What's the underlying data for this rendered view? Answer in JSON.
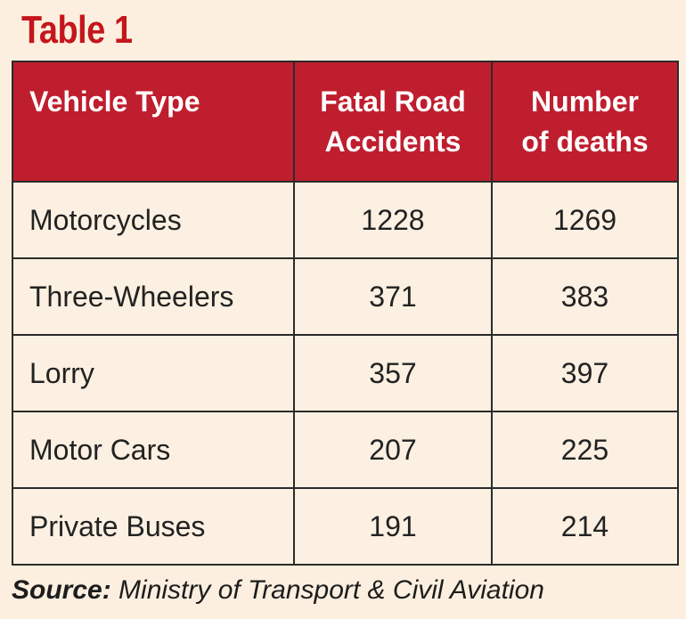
{
  "title": "Table 1",
  "table": {
    "headers": [
      "Vehicle Type",
      "Fatal Road Accidents",
      "Number of deaths"
    ],
    "header_lines": [
      [
        "Vehicle Type"
      ],
      [
        "Fatal Road",
        "Accidents"
      ],
      [
        "Number",
        "of deaths"
      ]
    ],
    "rows": [
      {
        "vehicle": "Motorcycles",
        "accidents": "1228",
        "deaths": "1269"
      },
      {
        "vehicle": "Three-Wheelers",
        "accidents": "371",
        "deaths": "383"
      },
      {
        "vehicle": "Lorry",
        "accidents": "357",
        "deaths": "397"
      },
      {
        "vehicle": "Motor Cars",
        "accidents": "207",
        "deaths": "225"
      },
      {
        "vehicle": "Private Buses",
        "accidents": "191",
        "deaths": "214"
      }
    ]
  },
  "source": {
    "label": "Source:",
    "text": "Ministry of Transport & Civil Aviation"
  },
  "colors": {
    "title": "#c4161c",
    "header_background": "#bf1e2e",
    "header_text": "#ffffff",
    "background": "#fcefdf",
    "border": "#2b2b2b"
  }
}
